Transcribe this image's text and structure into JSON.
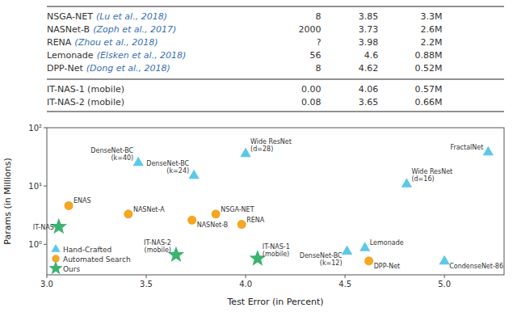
{
  "chart_data": [
    {
      "type": "table",
      "rows": [
        {
          "name": "NSGA-NET",
          "cite": "(Lu et al., 2018)",
          "cells": [
            "8",
            "3.85",
            "3.3M"
          ]
        },
        {
          "name": "NASNet-B",
          "cite": "(Zoph et al., 2017)",
          "cells": [
            "2000",
            "3.73",
            "2.6M"
          ]
        },
        {
          "name": "RENA",
          "cite": "(Zhou et al., 2018)",
          "cells": [
            "?",
            "3.98",
            "2.2M"
          ]
        },
        {
          "name": "Lemonade",
          "cite": "(Elsken et al., 2018)",
          "cells": [
            "56",
            "4.6",
            "0.88M"
          ]
        },
        {
          "name": "DPP-Net",
          "cite": "(Dong et al., 2018)",
          "cells": [
            "8",
            "4.62",
            "0.52M"
          ]
        }
      ],
      "ours_rows": [
        {
          "name": "IT-NAS-1 (mobile)",
          "cells": [
            "0.00",
            "4.06",
            "0.57M"
          ]
        },
        {
          "name": "IT-NAS-2 (mobile)",
          "cells": [
            "0.08",
            "3.65",
            "0.66M"
          ]
        }
      ]
    },
    {
      "type": "scatter",
      "xlabel": "Test Error (in Percent)",
      "ylabel": "Params (in Millions)",
      "log": "y",
      "grid": false,
      "legend": "lower left",
      "xlim": [
        3.0,
        5.3
      ],
      "xticks": [
        {
          "value": 3.0,
          "label": "3.0"
        },
        3.5,
        {
          "value": 4.0,
          "label": "4.0"
        },
        4.5,
        {
          "value": 5.0,
          "label": "5.0"
        }
      ],
      "ylim": [
        0.3,
        100
      ],
      "yticks": [
        {
          "value": 1,
          "label": "10⁰"
        },
        {
          "value": 10,
          "label": "10¹"
        },
        {
          "value": 100,
          "label": "10²"
        }
      ],
      "series": [
        {
          "name": "Hand-Crafted",
          "color": "#5bc8e8",
          "marker": "triangle",
          "x": [
            3.46,
            3.74,
            4.0,
            4.81,
            5.22,
            4.6,
            4.51,
            5.0
          ],
          "values": [
            25.6,
            15.3,
            36.5,
            11.0,
            38.6,
            0.88,
            0.77,
            0.52
          ],
          "labels": [
            "DenseNet-BC\n(k=40)",
            "DenseNet-BC\n(k=24)",
            "Wide ResNet\n(d=28)",
            "Wide ResNet\n(d=16)",
            "FractalNet",
            "Lemonade",
            "DenseNet-BC\n(k=12)",
            "CondenseNet-86"
          ]
        },
        {
          "name": "Automated Search",
          "color": "#f5a623",
          "marker": "circle",
          "x": [
            3.11,
            3.41,
            3.73,
            3.85,
            3.98,
            4.62
          ],
          "values": [
            4.6,
            3.3,
            2.6,
            3.3,
            2.2,
            0.52
          ],
          "labels": [
            "ENAS",
            "NASNet-A",
            "NASNet-B",
            "NSGA-NET",
            "RENA",
            "DPP-Net"
          ]
        },
        {
          "name": "Ours",
          "color": "#3cb371",
          "marker": "star",
          "x": [
            3.06,
            3.65,
            4.06
          ],
          "values": [
            2.0,
            0.66,
            0.57
          ],
          "labels": [
            "IT-NAS",
            "IT-NAS-2\n(mobile)",
            "IT-NAS-1\n(mobile)"
          ]
        }
      ]
    }
  ]
}
